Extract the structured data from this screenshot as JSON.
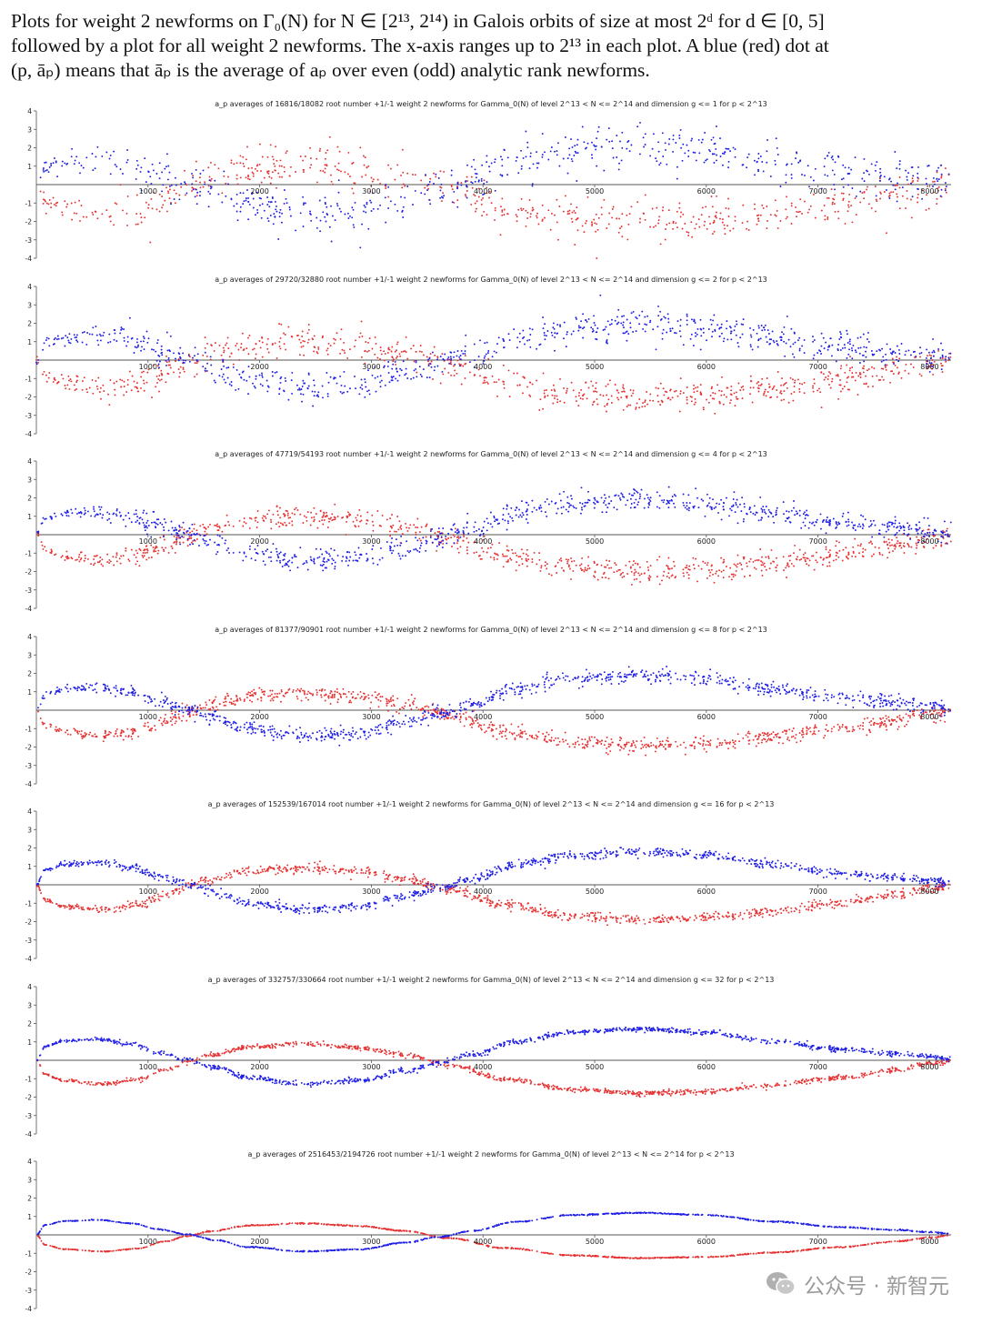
{
  "caption": {
    "line1": "Plots for weight 2 newforms on Γ₀(N) for N ∈ [2¹³, 2¹⁴) in Galois orbits of size at most 2ᵈ for d ∈ [0, 5]",
    "line2": "followed by a plot for all weight 2 newforms. The x-axis ranges up to 2¹³ in each plot. A blue (red) dot at",
    "line3": "(p, āₚ) means that āₚ is the average of aₚ over even (odd) analytic rank newforms."
  },
  "colors": {
    "even": "#1f1fe6",
    "odd": "#e63232",
    "axis": "#555555"
  },
  "watermark": {
    "icon": "wechat-icon",
    "text": "公众号 · 新智元"
  },
  "chart_data": [
    {
      "type": "scatter",
      "title": "a_p averages of 16816/18082 root number +1/-1 weight 2 newforms for Gamma_0(N) of level 2^13 < N <= 2^14 and dimension g <= 1 for p < 2^13",
      "xlim": [
        0,
        8192
      ],
      "ylim": [
        -4,
        4
      ],
      "xticks": [
        1000,
        2000,
        3000,
        4000,
        5000,
        6000,
        7000,
        8000
      ],
      "yticks": [
        4,
        3,
        2,
        1,
        -1,
        -2,
        -3,
        -4
      ],
      "noise": 0.55,
      "points": 650,
      "amplitude": 1.0,
      "series": [
        {
          "name": "even analytic rank",
          "color": "blue"
        },
        {
          "name": "odd analytic rank",
          "color": "red"
        }
      ]
    },
    {
      "type": "scatter",
      "title": "a_p averages of 29720/32880 root number +1/-1 weight 2 newforms for Gamma_0(N) of level 2^13 < N <= 2^14 and dimension g <= 2 for p < 2^13",
      "xlim": [
        0,
        8192
      ],
      "ylim": [
        -4,
        4
      ],
      "xticks": [
        1000,
        2000,
        3000,
        4000,
        5000,
        6000,
        7000,
        8000
      ],
      "yticks": [
        4,
        3,
        2,
        1,
        -1,
        -2,
        -3,
        -4
      ],
      "noise": 0.42,
      "points": 800,
      "amplitude": 0.97,
      "series": [
        {
          "name": "even analytic rank",
          "color": "blue"
        },
        {
          "name": "odd analytic rank",
          "color": "red"
        }
      ]
    },
    {
      "type": "scatter",
      "title": "a_p averages of 47719/54193 root number +1/-1 weight 2 newforms for Gamma_0(N) of level 2^13 < N <= 2^14 and dimension g <= 4 for p < 2^13",
      "xlim": [
        0,
        8192
      ],
      "ylim": [
        -4,
        4
      ],
      "xticks": [
        1000,
        2000,
        3000,
        4000,
        5000,
        6000,
        7000,
        8000
      ],
      "yticks": [
        4,
        3,
        2,
        1,
        -1,
        -2,
        -3,
        -4
      ],
      "noise": 0.3,
      "points": 900,
      "amplitude": 0.95,
      "series": [
        {
          "name": "even analytic rank",
          "color": "blue"
        },
        {
          "name": "odd analytic rank",
          "color": "red"
        }
      ]
    },
    {
      "type": "scatter",
      "title": "a_p averages of 81377/90901 root number +1/-1 weight 2 newforms for Gamma_0(N) of level 2^13 < N <= 2^14 and dimension g <= 8 for p < 2^13",
      "xlim": [
        0,
        8192
      ],
      "ylim": [
        -4,
        4
      ],
      "xticks": [
        1000,
        2000,
        3000,
        4000,
        5000,
        6000,
        7000,
        8000
      ],
      "yticks": [
        4,
        3,
        2,
        1,
        -1,
        -2,
        -3,
        -4
      ],
      "noise": 0.2,
      "points": 1000,
      "amplitude": 0.93,
      "series": [
        {
          "name": "even analytic rank",
          "color": "blue"
        },
        {
          "name": "odd analytic rank",
          "color": "red"
        }
      ]
    },
    {
      "type": "scatter",
      "title": "a_p averages of 152539/167014 root number +1/-1 weight 2 newforms for Gamma_0(N) of level 2^13 < N <= 2^14 and dimension g <= 16 for p < 2^13",
      "xlim": [
        0,
        8192
      ],
      "ylim": [
        -4,
        4
      ],
      "xticks": [
        1000,
        2000,
        3000,
        4000,
        5000,
        6000,
        7000,
        8000
      ],
      "yticks": [
        4,
        3,
        2,
        1,
        -1,
        -2,
        -3,
        -4
      ],
      "noise": 0.13,
      "points": 1020,
      "amplitude": 0.9,
      "series": [
        {
          "name": "even analytic rank",
          "color": "blue"
        },
        {
          "name": "odd analytic rank",
          "color": "red"
        }
      ]
    },
    {
      "type": "scatter",
      "title": "a_p averages of 332757/330664 root number +1/-1 weight 2 newforms for Gamma_0(N) of level 2^13 < N <= 2^14 and dimension g <= 32 for p < 2^13",
      "xlim": [
        0,
        8192
      ],
      "ylim": [
        -4,
        4
      ],
      "xticks": [
        1000,
        2000,
        3000,
        4000,
        5000,
        6000,
        7000,
        8000
      ],
      "yticks": [
        4,
        3,
        2,
        1,
        -1,
        -2,
        -3,
        -4
      ],
      "noise": 0.07,
      "points": 1020,
      "amplitude": 0.85,
      "series": [
        {
          "name": "even analytic rank",
          "color": "blue"
        },
        {
          "name": "odd analytic rank",
          "color": "red"
        }
      ]
    },
    {
      "type": "scatter",
      "title": "a_p averages of 2516453/2194726 root number +1/-1 weight 2 newforms for Gamma_0(N) of level 2^13 < N <= 2^14 for p < 2^13",
      "xlim": [
        0,
        8192
      ],
      "ylim": [
        -4,
        4
      ],
      "xticks": [
        1000,
        2000,
        3000,
        4000,
        5000,
        6000,
        7000,
        8000
      ],
      "yticks": [
        4,
        3,
        2,
        1,
        -1,
        -2,
        -3,
        -4
      ],
      "noise": 0.015,
      "points": 1020,
      "amplitude": 0.6,
      "series": [
        {
          "name": "even analytic rank",
          "color": "blue"
        },
        {
          "name": "odd analytic rank",
          "color": "red"
        }
      ]
    }
  ]
}
